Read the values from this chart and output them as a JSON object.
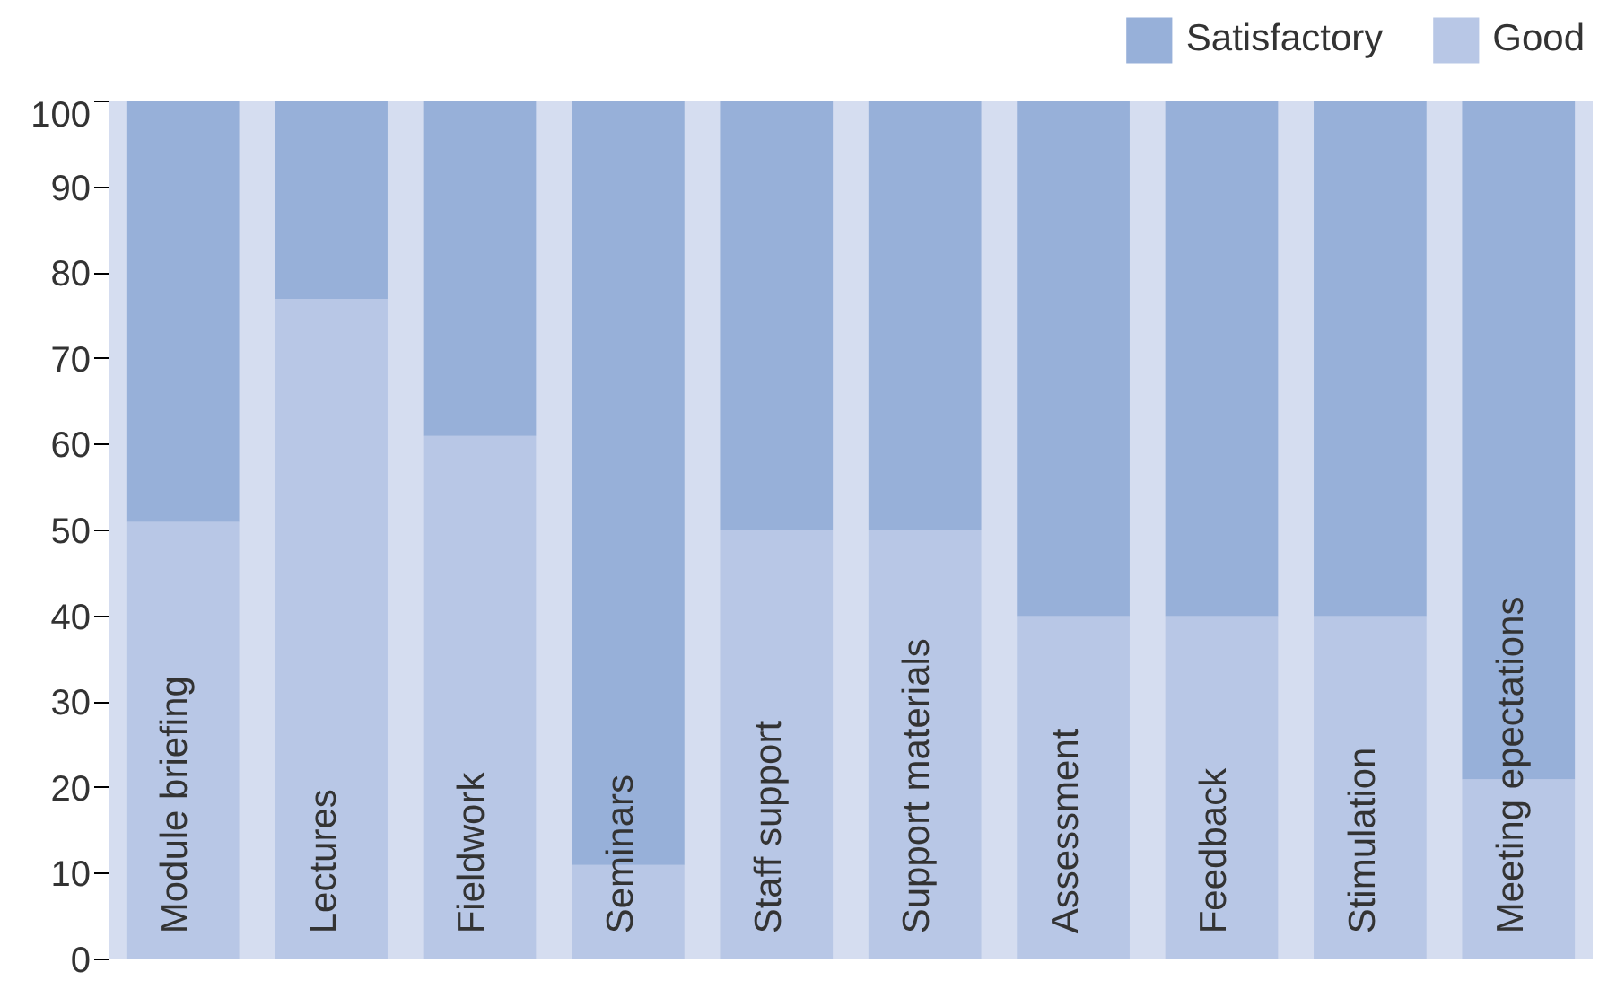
{
  "chart_data": {
    "type": "bar",
    "stacked": true,
    "categories": [
      "Module briefing",
      "Lectures",
      "Fieldwork",
      "Seminars",
      "Staff support",
      "Support materials",
      "Assessment",
      "Feedback",
      "Stimulation",
      "Meeting epectations"
    ],
    "series": [
      {
        "name": "Good",
        "color": "#b8c7e6",
        "values": [
          51,
          77,
          61,
          11,
          50,
          50,
          40,
          40,
          40,
          21
        ]
      },
      {
        "name": "Satisfactory",
        "color": "#97b0d9",
        "values": [
          49,
          23,
          39,
          89,
          50,
          50,
          60,
          60,
          60,
          79
        ]
      }
    ],
    "ylim": [
      0,
      100
    ],
    "yticks": [
      0,
      10,
      20,
      30,
      40,
      50,
      60,
      70,
      80,
      90,
      100
    ],
    "grid": false,
    "legend": "top right",
    "tick_labels": "y"
  }
}
